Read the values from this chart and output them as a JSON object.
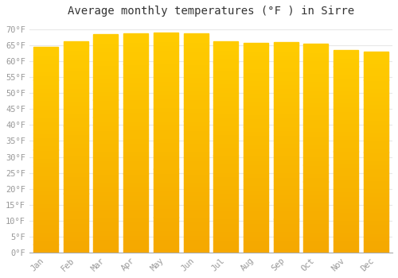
{
  "title": "Average monthly temperatures (°F ) in Sirre",
  "months": [
    "Jan",
    "Feb",
    "Mar",
    "Apr",
    "May",
    "Jun",
    "Jul",
    "Aug",
    "Sep",
    "Oct",
    "Nov",
    "Dec"
  ],
  "values": [
    64.5,
    66.2,
    68.5,
    68.8,
    69.1,
    68.7,
    66.3,
    65.8,
    66.0,
    65.5,
    63.5,
    63.0
  ],
  "ylim": [
    0,
    72
  ],
  "yticks": [
    0,
    5,
    10,
    15,
    20,
    25,
    30,
    35,
    40,
    45,
    50,
    55,
    60,
    65,
    70
  ],
  "bar_color_top": "#FFCC00",
  "bar_color_bottom": "#F5A800",
  "background_color": "#ffffff",
  "grid_color": "#e8e8e8",
  "title_fontsize": 10,
  "tick_fontsize": 7.5,
  "tick_color": "#999999",
  "bar_width": 0.82
}
